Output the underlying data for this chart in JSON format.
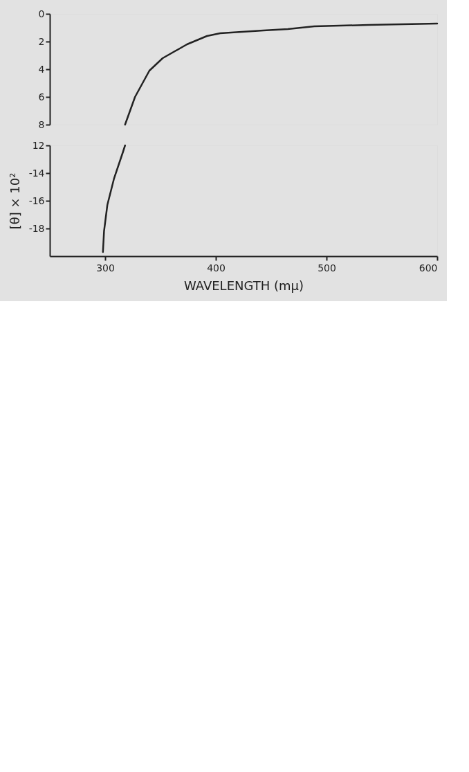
{
  "chart_data": [
    {
      "type": "line",
      "x": [
        600,
        538,
        489,
        465,
        443,
        404,
        392,
        374,
        352,
        340,
        327,
        318
      ],
      "values": [
        -0.7,
        -0.8,
        -0.9,
        -1.1,
        -1.2,
        -1.4,
        -1.6,
        -2.2,
        -3.2,
        -4.1,
        -6.0,
        -8.0
      ],
      "color": "#222222",
      "xlim": [
        250,
        600
      ],
      "xticks": [
        300,
        400,
        500,
        600
      ],
      "ylim": [
        -8,
        0
      ],
      "yticks": [
        0,
        {
          "value": -2,
          "label": "2"
        },
        {
          "value": -4,
          "label": "4"
        },
        {
          "value": -6,
          "label": "6"
        },
        {
          "value": -8,
          "label": "8"
        }
      ],
      "tick_labels": "y"
    },
    {
      "type": "line",
      "x": [
        318,
        316,
        308,
        302,
        299,
        298
      ],
      "values": [
        -12.0,
        -12.5,
        -14.4,
        -16.3,
        -18.2,
        -19.7
      ],
      "color": "#222222",
      "xlim": [
        250,
        600
      ],
      "xticks": [
        300,
        400,
        500,
        600
      ],
      "ylim": [
        -20,
        -12
      ],
      "yticks": [
        {
          "value": -12,
          "label": "12"
        },
        -14,
        -16,
        -18
      ],
      "xlabel": "WAVELENGTH (mμ)",
      "ylabel": "[θ] × 10²"
    }
  ]
}
